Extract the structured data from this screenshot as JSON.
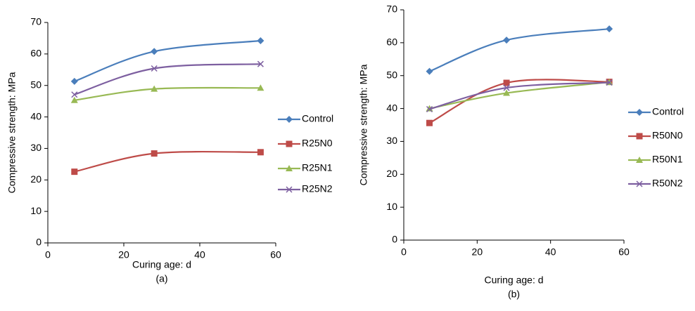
{
  "chart_data": [
    {
      "type": "line",
      "caption": "(a)",
      "x_label": "Curing age: d",
      "y_label": "Compressive strength: MPa",
      "x": [
        7,
        28,
        56
      ],
      "xlim": [
        0,
        60
      ],
      "xticks": [
        0,
        20,
        40,
        60
      ],
      "ylim": [
        0,
        70
      ],
      "yticks": [
        0,
        10,
        20,
        30,
        40,
        50,
        60,
        70
      ],
      "series": [
        {
          "name": "Control",
          "color": "#4a7ebb",
          "marker": "diamond",
          "values": [
            51.3,
            60.8,
            64.2
          ]
        },
        {
          "name": "R25N0",
          "color": "#be4b48",
          "marker": "square",
          "values": [
            22.6,
            28.4,
            28.8
          ]
        },
        {
          "name": "R25N1",
          "color": "#98b954",
          "marker": "triangle",
          "values": [
            45.3,
            48.9,
            49.2
          ]
        },
        {
          "name": "R25N2",
          "color": "#7d5fa0",
          "marker": "x",
          "values": [
            47.1,
            55.4,
            56.8
          ]
        }
      ]
    },
    {
      "type": "line",
      "caption": "(b)",
      "x_label": "Curing age: d",
      "y_label": "Compressive strength: MPa",
      "x": [
        7,
        28,
        56
      ],
      "xlim": [
        0,
        60
      ],
      "xticks": [
        0,
        20,
        40,
        60
      ],
      "ylim": [
        0,
        70
      ],
      "yticks": [
        0,
        10,
        20,
        30,
        40,
        50,
        60,
        70
      ],
      "series": [
        {
          "name": "Control",
          "color": "#4a7ebb",
          "marker": "diamond",
          "values": [
            51.3,
            60.8,
            64.2
          ]
        },
        {
          "name": "R50N0",
          "color": "#be4b48",
          "marker": "square",
          "values": [
            35.6,
            47.8,
            48.1
          ]
        },
        {
          "name": "R50N1",
          "color": "#98b954",
          "marker": "triangle",
          "values": [
            40.0,
            44.7,
            48.0
          ]
        },
        {
          "name": "R50N2",
          "color": "#7d5fa0",
          "marker": "x",
          "values": [
            39.8,
            46.3,
            47.9
          ]
        }
      ]
    }
  ]
}
